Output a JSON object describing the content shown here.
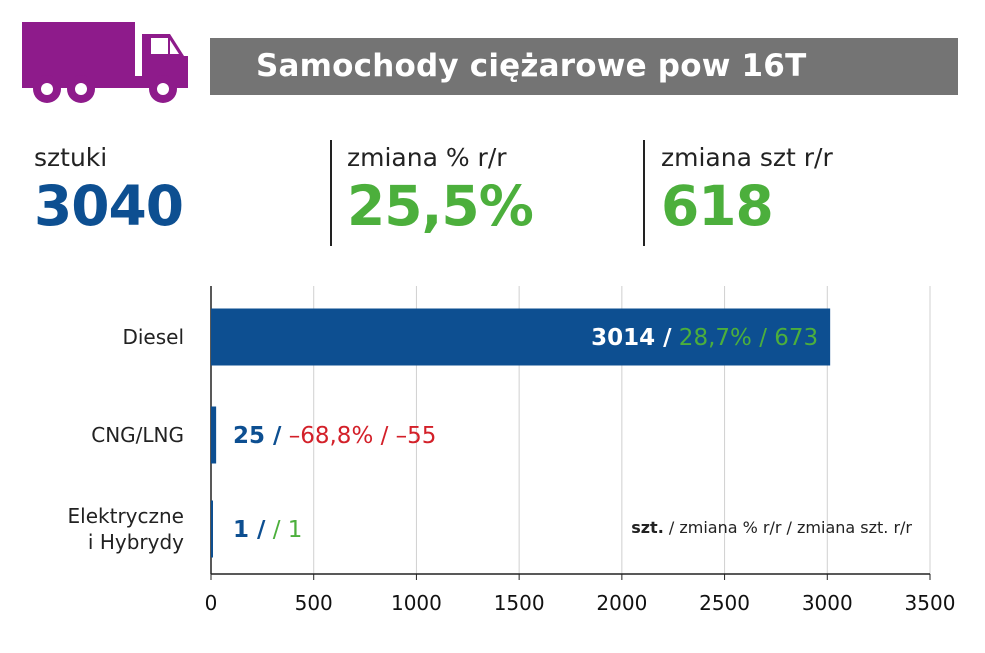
{
  "header": {
    "title": "Samochody ciężarowe pow 16T",
    "icon": "truck-icon",
    "icon_color": "#8e1b8b",
    "bar_color": "#747474"
  },
  "stats": [
    {
      "label": "sztuki",
      "value": "3040",
      "color": "#0d4f91"
    },
    {
      "label": "zmiana % r/r",
      "value": "25,5%",
      "color": "#4caf3c"
    },
    {
      "label": "zmiana szt r/r",
      "value": "618",
      "color": "#4caf3c"
    }
  ],
  "colors": {
    "blue": "#0d4f91",
    "green": "#4caf3c",
    "red": "#d32029"
  },
  "chart_data": {
    "type": "bar",
    "orientation": "horizontal",
    "categories": [
      "Diesel",
      "CNG/LNG",
      "Elektryczne i Hybrydy"
    ],
    "category_lines": [
      [
        "Diesel"
      ],
      [
        "CNG/LNG"
      ],
      [
        "Elektryczne",
        "i Hybrydy"
      ]
    ],
    "values": [
      3014,
      25,
      1
    ],
    "change_pct_labels": [
      "28,7%",
      "–68,8%",
      ""
    ],
    "change_units_labels": [
      "673",
      "–55",
      "1"
    ],
    "xlim": [
      0,
      3500
    ],
    "x_ticks": [
      "0",
      "500",
      "1000",
      "1500",
      "2000",
      "2500",
      "3000",
      "3500"
    ],
    "grid": true,
    "legend_note": {
      "bold": "szt.",
      "rest": " / zmiana % r/r / zmiana szt. r/r"
    }
  }
}
